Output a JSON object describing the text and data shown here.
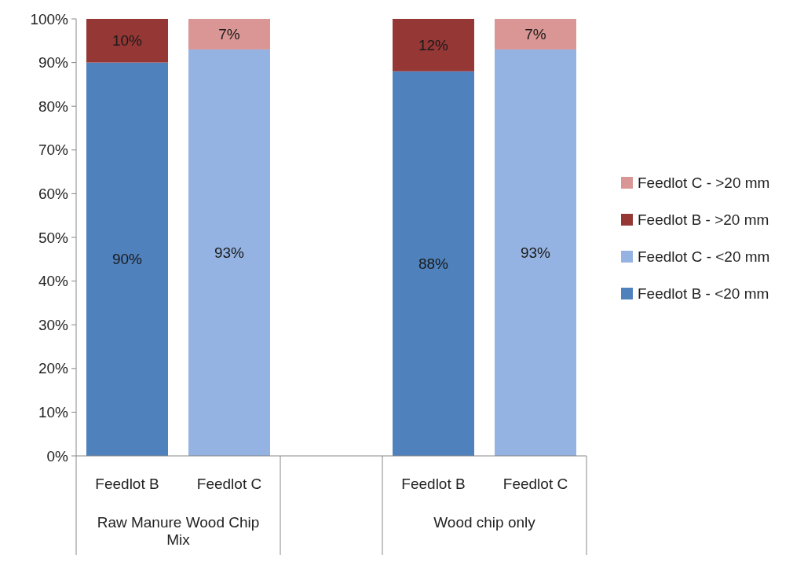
{
  "chart_data": {
    "type": "bar",
    "stacked": true,
    "categories": [
      "Feedlot B",
      "Feedlot C",
      null,
      "Feedlot B",
      "Feedlot C"
    ],
    "annotations": [
      "Raw Manure Wood Chip Mix",
      "Wood chip only"
    ],
    "series": [
      {
        "name": "Feedlot B - <20 mm",
        "color": "#4f81bd",
        "values": [
          90,
          null,
          null,
          88,
          null
        ],
        "value_labels": [
          "90%",
          null,
          null,
          "88%",
          null
        ]
      },
      {
        "name": "Feedlot C - <20 mm",
        "color": "#95b3e2",
        "values": [
          null,
          93,
          null,
          null,
          93
        ],
        "value_labels": [
          null,
          "93%",
          null,
          null,
          "93%"
        ]
      },
      {
        "name": "Feedlot B - >20 mm",
        "color": "#953735",
        "values": [
          10,
          null,
          null,
          12,
          null
        ],
        "value_labels": [
          "10%",
          null,
          null,
          "12%",
          null
        ]
      },
      {
        "name": "Feedlot C - >20 mm",
        "color": "#d99694",
        "values": [
          null,
          7,
          null,
          null,
          7
        ],
        "value_labels": [
          null,
          "7%",
          null,
          null,
          "7%"
        ]
      }
    ],
    "ylim": [
      0,
      100
    ],
    "yticks": [
      {
        "value": 0,
        "label": "0%"
      },
      {
        "value": 10,
        "label": "10%"
      },
      {
        "value": 20,
        "label": "20%"
      },
      {
        "value": 30,
        "label": "30%"
      },
      {
        "value": 40,
        "label": "40%"
      },
      {
        "value": 50,
        "label": "50%"
      },
      {
        "value": 60,
        "label": "60%"
      },
      {
        "value": 70,
        "label": "70%"
      },
      {
        "value": 80,
        "label": "80%"
      },
      {
        "value": 90,
        "label": "90%"
      },
      {
        "value": 100,
        "label": "100%"
      }
    ],
    "legend": "right",
    "grid": false
  }
}
